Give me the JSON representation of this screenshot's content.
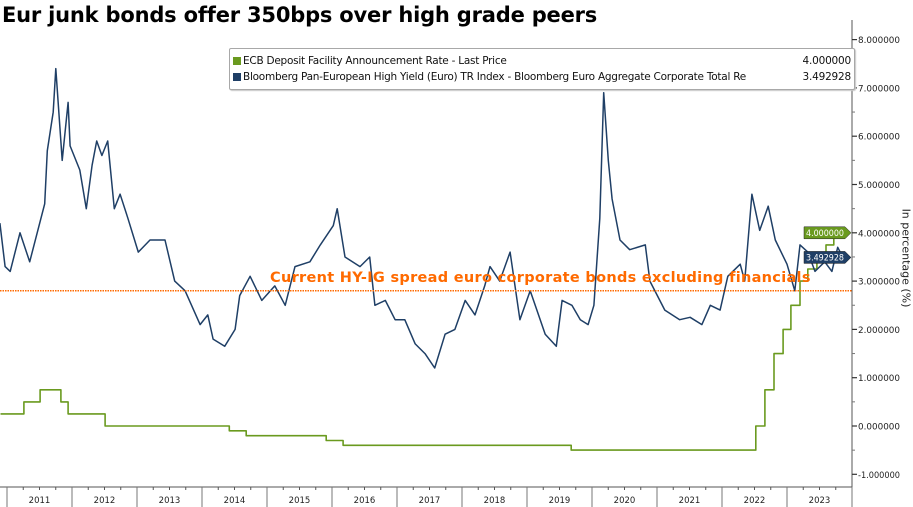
{
  "title": "Eur junk bonds offer 350bps over high grade peers",
  "chart_data": {
    "type": "line",
    "title": "Eur junk bonds offer 350bps over high grade peers",
    "xlabel": "",
    "ylabel": "In percentage (%)",
    "xlim": [
      2010.9,
      2023.85
    ],
    "ylim": [
      -1.3,
      8.2
    ],
    "x_ticks": [
      "2011",
      "2012",
      "2013",
      "2014",
      "2015",
      "2016",
      "2017",
      "2018",
      "2019",
      "2020",
      "2021",
      "2022",
      "2023"
    ],
    "y_ticks": [
      "8.000000",
      "7.000000",
      "6.000000",
      "5.000000",
      "4.000000",
      "3.000000",
      "2.000000",
      "1.000000",
      "0.000000",
      "-1.000000"
    ],
    "y_tick_values": [
      8,
      7,
      6,
      5,
      4,
      3,
      2,
      1,
      0,
      -1
    ],
    "grid": false,
    "legend_position": "top",
    "annotation": {
      "text": "Current HY-IG spread euro corporate bonds excluding financials",
      "y": 2.8,
      "color": "#ff6a00"
    },
    "series": [
      {
        "name": "ECB Deposit Facility Announcement Rate - Last Price",
        "last_value": "4.000000",
        "color": "#6a9a1f",
        "step": true,
        "points": [
          [
            2010.9,
            0.25
          ],
          [
            2011.26,
            0.5
          ],
          [
            2011.51,
            0.75
          ],
          [
            2011.83,
            0.5
          ],
          [
            2011.94,
            0.25
          ],
          [
            2012.51,
            0.0
          ],
          [
            2014.42,
            -0.1
          ],
          [
            2014.68,
            -0.2
          ],
          [
            2015.91,
            -0.3
          ],
          [
            2016.17,
            -0.4
          ],
          [
            2019.68,
            -0.5
          ],
          [
            2022.52,
            0.0
          ],
          [
            2022.66,
            0.75
          ],
          [
            2022.8,
            1.5
          ],
          [
            2022.94,
            2.0
          ],
          [
            2023.06,
            2.5
          ],
          [
            2023.2,
            3.0
          ],
          [
            2023.32,
            3.25
          ],
          [
            2023.46,
            3.5
          ],
          [
            2023.6,
            3.75
          ],
          [
            2023.72,
            4.0
          ],
          [
            2023.89,
            4.0
          ]
        ]
      },
      {
        "name": "Bloomberg Pan-European High Yield (Euro) TR Index - Bloomberg Euro Aggregate Corporate Total Re",
        "last_value": "3.492928",
        "color": "#1f3f66",
        "step": false,
        "points": [
          [
            2010.89,
            4.2
          ],
          [
            2010.97,
            3.3
          ],
          [
            2011.05,
            3.2
          ],
          [
            2011.2,
            4.0
          ],
          [
            2011.35,
            3.4
          ],
          [
            2011.58,
            4.6
          ],
          [
            2011.62,
            5.7
          ],
          [
            2011.71,
            6.5
          ],
          [
            2011.75,
            7.4
          ],
          [
            2011.85,
            5.5
          ],
          [
            2011.94,
            6.7
          ],
          [
            2011.97,
            5.8
          ],
          [
            2012.12,
            5.3
          ],
          [
            2012.22,
            4.5
          ],
          [
            2012.31,
            5.4
          ],
          [
            2012.38,
            5.9
          ],
          [
            2012.46,
            5.6
          ],
          [
            2012.55,
            5.9
          ],
          [
            2012.65,
            4.5
          ],
          [
            2012.74,
            4.8
          ],
          [
            2012.86,
            4.3
          ],
          [
            2013.02,
            3.6
          ],
          [
            2013.2,
            3.85
          ],
          [
            2013.43,
            3.85
          ],
          [
            2013.58,
            3.0
          ],
          [
            2013.74,
            2.8
          ],
          [
            2013.97,
            2.1
          ],
          [
            2014.09,
            2.3
          ],
          [
            2014.17,
            1.8
          ],
          [
            2014.35,
            1.65
          ],
          [
            2014.51,
            2.0
          ],
          [
            2014.58,
            2.7
          ],
          [
            2014.74,
            3.1
          ],
          [
            2014.92,
            2.6
          ],
          [
            2015.12,
            2.9
          ],
          [
            2015.28,
            2.5
          ],
          [
            2015.43,
            3.3
          ],
          [
            2015.66,
            3.4
          ],
          [
            2015.82,
            3.75
          ],
          [
            2016.02,
            4.15
          ],
          [
            2016.08,
            4.5
          ],
          [
            2016.2,
            3.5
          ],
          [
            2016.43,
            3.3
          ],
          [
            2016.58,
            3.5
          ],
          [
            2016.66,
            2.5
          ],
          [
            2016.82,
            2.6
          ],
          [
            2016.97,
            2.2
          ],
          [
            2017.12,
            2.2
          ],
          [
            2017.28,
            1.7
          ],
          [
            2017.43,
            1.5
          ],
          [
            2017.58,
            1.2
          ],
          [
            2017.74,
            1.9
          ],
          [
            2017.89,
            2.0
          ],
          [
            2018.05,
            2.6
          ],
          [
            2018.2,
            2.3
          ],
          [
            2018.35,
            2.9
          ],
          [
            2018.43,
            3.3
          ],
          [
            2018.58,
            3.0
          ],
          [
            2018.74,
            3.6
          ],
          [
            2018.89,
            2.2
          ],
          [
            2019.05,
            2.8
          ],
          [
            2019.28,
            1.9
          ],
          [
            2019.45,
            1.65
          ],
          [
            2019.54,
            2.6
          ],
          [
            2019.69,
            2.5
          ],
          [
            2019.82,
            2.2
          ],
          [
            2019.94,
            2.1
          ],
          [
            2020.03,
            2.5
          ],
          [
            2020.12,
            4.3
          ],
          [
            2020.18,
            6.9
          ],
          [
            2020.25,
            5.5
          ],
          [
            2020.31,
            4.7
          ],
          [
            2020.43,
            3.85
          ],
          [
            2020.58,
            3.65
          ],
          [
            2020.82,
            3.75
          ],
          [
            2020.89,
            3.0
          ],
          [
            2021.12,
            2.4
          ],
          [
            2021.35,
            2.2
          ],
          [
            2021.51,
            2.25
          ],
          [
            2021.69,
            2.1
          ],
          [
            2021.82,
            2.5
          ],
          [
            2021.97,
            2.4
          ],
          [
            2022.09,
            3.1
          ],
          [
            2022.28,
            3.35
          ],
          [
            2022.35,
            3.0
          ],
          [
            2022.46,
            4.8
          ],
          [
            2022.58,
            4.05
          ],
          [
            2022.71,
            4.55
          ],
          [
            2022.82,
            3.85
          ],
          [
            2023.0,
            3.35
          ],
          [
            2023.12,
            2.8
          ],
          [
            2023.2,
            3.75
          ],
          [
            2023.32,
            3.6
          ],
          [
            2023.43,
            3.2
          ],
          [
            2023.58,
            3.4
          ],
          [
            2023.69,
            3.2
          ],
          [
            2023.78,
            3.7
          ],
          [
            2023.86,
            3.49
          ]
        ]
      }
    ]
  }
}
